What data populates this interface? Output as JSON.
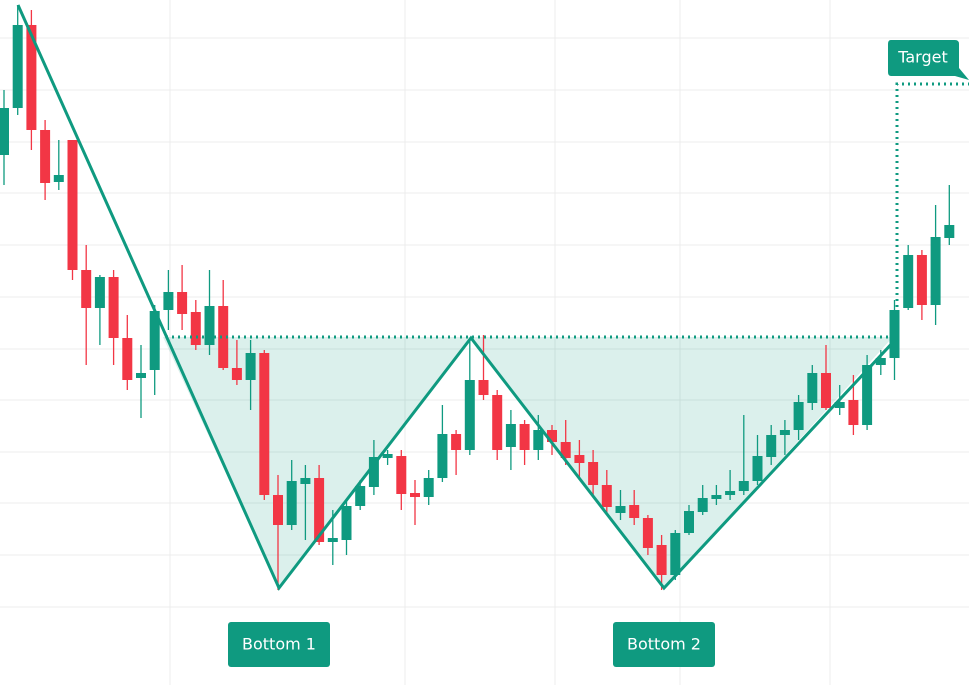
{
  "chart_data": {
    "type": "candlestick",
    "annotations": [
      "Bottom 1",
      "Bottom 2",
      "Target"
    ],
    "up_color": "#0f9a80",
    "down_color": "#f23645",
    "ylim": [
      0,
      685
    ],
    "open": [
      530,
      577,
      660,
      555,
      503,
      545,
      415,
      377,
      408,
      347,
      307,
      315,
      375,
      393,
      373,
      340,
      379,
      317,
      305,
      332,
      190,
      160,
      201,
      207,
      143,
      145,
      179,
      198,
      227,
      229,
      192,
      188,
      207,
      251,
      235,
      305,
      290,
      238,
      261,
      235,
      255,
      243,
      230,
      223,
      200,
      172,
      180,
      167,
      140,
      110,
      152,
      173,
      186,
      190,
      194,
      204,
      228,
      250,
      255,
      282,
      312,
      277,
      285,
      260,
      320,
      327,
      377,
      430,
      380,
      447
    ],
    "high": [
      595,
      680,
      675,
      565,
      545,
      545,
      440,
      410,
      415,
      370,
      340,
      380,
      415,
      420,
      385,
      415,
      405,
      345,
      345,
      335,
      210,
      225,
      220,
      220,
      175,
      185,
      205,
      245,
      235,
      235,
      205,
      215,
      280,
      255,
      345,
      350,
      295,
      275,
      265,
      270,
      260,
      265,
      245,
      235,
      215,
      195,
      195,
      170,
      150,
      155,
      180,
      200,
      200,
      215,
      270,
      250,
      260,
      265,
      290,
      320,
      340,
      300,
      310,
      330,
      335,
      385,
      440,
      435,
      480,
      500
    ],
    "low": [
      500,
      570,
      535,
      485,
      495,
      405,
      320,
      340,
      320,
      295,
      267,
      290,
      355,
      355,
      335,
      330,
      315,
      300,
      275,
      185,
      95,
      155,
      145,
      140,
      120,
      130,
      175,
      190,
      220,
      175,
      160,
      180,
      203,
      210,
      230,
      285,
      225,
      215,
      220,
      225,
      230,
      220,
      205,
      190,
      170,
      165,
      160,
      130,
      95,
      105,
      150,
      170,
      180,
      185,
      190,
      200,
      220,
      230,
      245,
      275,
      275,
      270,
      250,
      255,
      310,
      305,
      375,
      365,
      360,
      440
    ],
    "close": [
      577,
      660,
      555,
      502,
      510,
      415,
      377,
      408,
      347,
      305,
      312,
      374,
      393,
      371,
      340,
      379,
      317,
      305,
      332,
      190,
      160,
      204,
      207,
      143,
      147,
      179,
      199,
      228,
      231,
      191,
      188,
      207,
      251,
      235,
      305,
      290,
      235,
      261,
      235,
      255,
      243,
      227,
      222,
      200,
      178,
      179,
      167,
      137,
      110,
      152,
      174,
      187,
      190,
      194,
      204,
      229,
      250,
      255,
      283,
      312,
      277,
      283,
      260,
      320,
      327,
      375,
      430,
      380,
      448,
      460
    ]
  }
}
